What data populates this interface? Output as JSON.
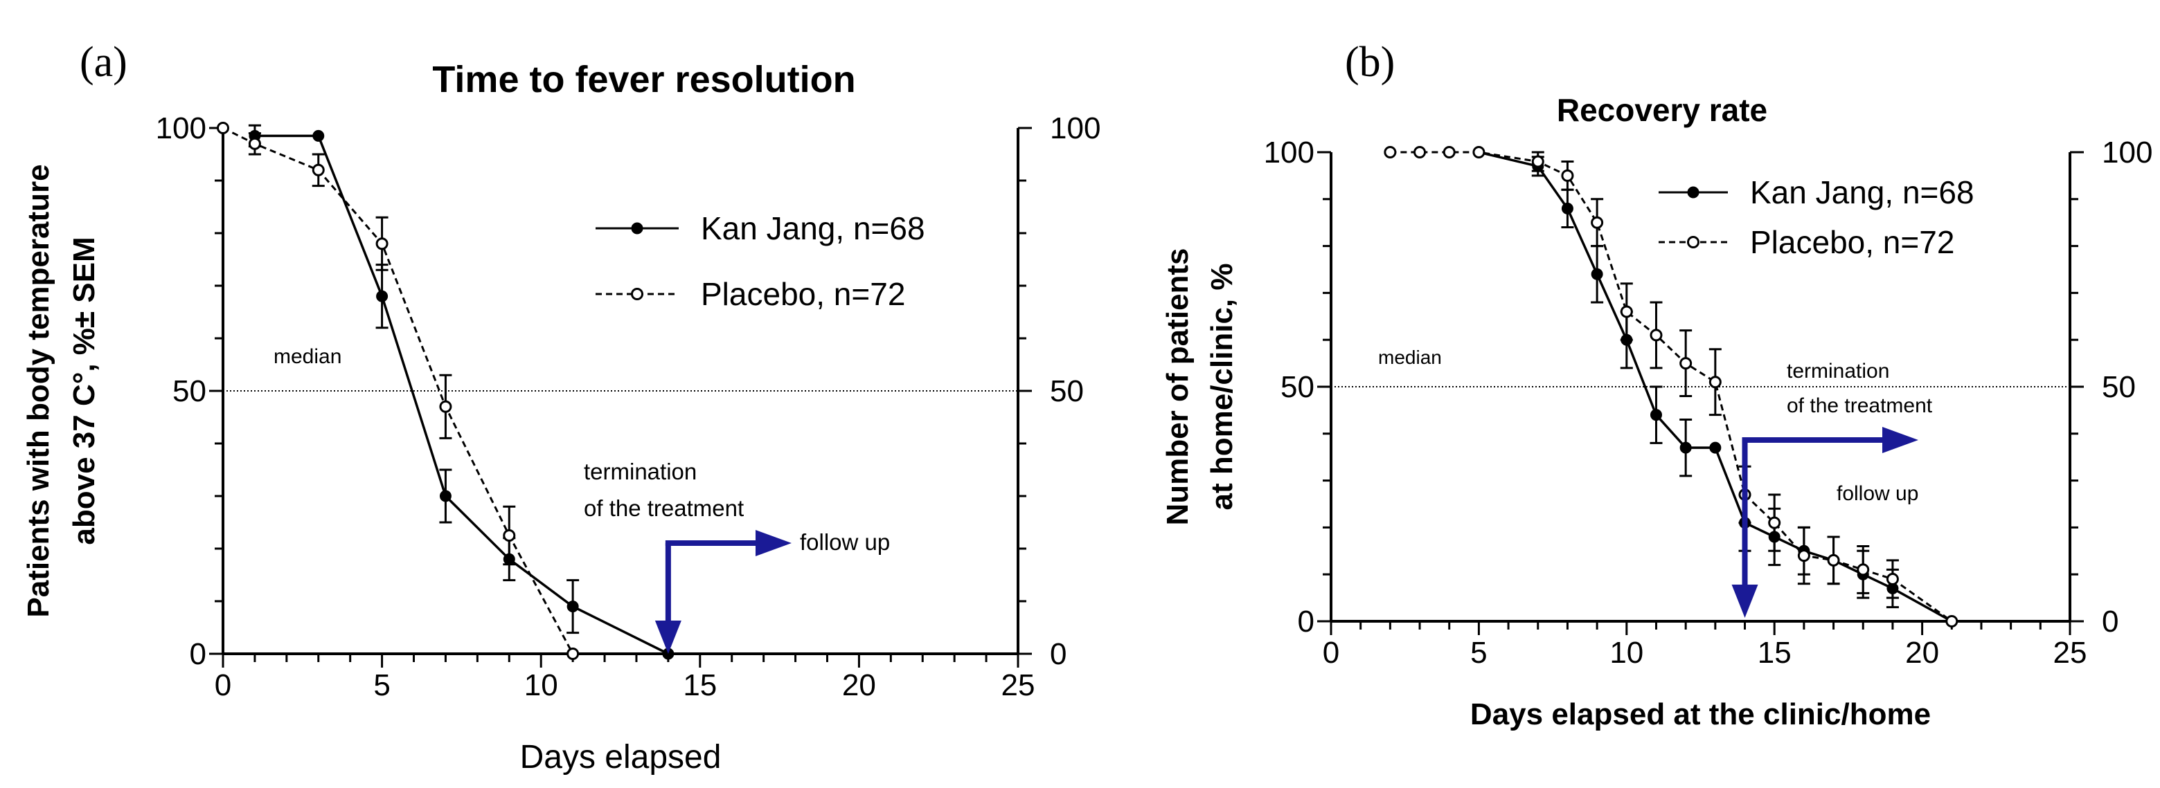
{
  "colors": {
    "axis": "#000000",
    "series": "#000000",
    "arrow": "#1a1a96",
    "background": "#ffffff"
  },
  "chart_data": [
    {
      "type": "line",
      "panel_label": "(a)",
      "title": "Time to fever resolution",
      "xlabel": "Days elapsed",
      "ylabel_lines": [
        "Patients with body temperature",
        "above 37 C°,  %± SEM"
      ],
      "xlim": [
        0,
        25
      ],
      "ylim": [
        0,
        100
      ],
      "x_ticks": [
        0,
        5,
        10,
        15,
        20,
        25
      ],
      "y_ticks": [
        0,
        50,
        100
      ],
      "right_y_ticks": [
        0,
        50,
        100
      ],
      "legend_position": "top-right",
      "series": [
        {
          "name": "Kan Jang, n=68",
          "style": "solid-filled",
          "x": [
            1,
            3,
            5,
            7,
            9,
            11,
            14
          ],
          "y": [
            98.5,
            98.5,
            68,
            30,
            18,
            9,
            0
          ],
          "err": [
            2,
            0,
            6,
            5,
            4,
            5,
            0
          ]
        },
        {
          "name": "Placebo, n=72",
          "style": "dashed-open",
          "x": [
            0,
            1,
            3,
            5,
            7,
            9,
            11
          ],
          "y": [
            100,
            97,
            92,
            78,
            47,
            22.5,
            0
          ],
          "err": [
            0,
            2,
            3,
            5,
            6,
            5.5,
            0
          ]
        }
      ],
      "annotations": {
        "median": "median",
        "termination_line1": "termination",
        "termination_line2": "of the treatment",
        "follow_up": "follow up"
      },
      "median_value": 50,
      "termination_day": 14
    },
    {
      "type": "line",
      "panel_label": "(b)",
      "title": "Recovery rate",
      "xlabel": "Days elapsed at the clinic/home",
      "ylabel_lines": [
        "Number of patients",
        "at home/clinic, %"
      ],
      "xlim": [
        0,
        25
      ],
      "ylim": [
        0,
        100
      ],
      "x_ticks": [
        0,
        5,
        10,
        15,
        20,
        25
      ],
      "y_ticks": [
        0,
        50,
        100
      ],
      "right_y_ticks": [
        0,
        50,
        100
      ],
      "legend_position": "top-right",
      "series": [
        {
          "name": "Kan Jang, n=68",
          "style": "solid-filled",
          "x": [
            5,
            7,
            8,
            9,
            10,
            11,
            12,
            13,
            14,
            15,
            16,
            17,
            18,
            19,
            21
          ],
          "y": [
            100,
            97,
            88,
            74,
            60,
            44,
            37,
            37,
            21,
            18,
            15,
            13,
            10,
            7,
            0
          ],
          "err": [
            0,
            2,
            4,
            6,
            6,
            6,
            6,
            0,
            6,
            6,
            5,
            5,
            5,
            4,
            0
          ]
        },
        {
          "name": "Placebo, n=72",
          "style": "dashed-open",
          "x": [
            2,
            3,
            4,
            5,
            7,
            8,
            9,
            10,
            11,
            12,
            13,
            14,
            15,
            16,
            17,
            18,
            19,
            21
          ],
          "y": [
            100,
            100,
            100,
            100,
            98,
            95,
            85,
            66,
            61,
            55,
            51,
            27,
            21,
            14,
            13,
            11,
            9,
            0
          ],
          "err": [
            0,
            0,
            0,
            0,
            2,
            3,
            5,
            6,
            7,
            7,
            7,
            6,
            6,
            6,
            5,
            5,
            4,
            0
          ]
        }
      ],
      "annotations": {
        "median": "median",
        "termination_line1": "termination",
        "termination_line2": "of the treatment",
        "follow_up": "follow up"
      },
      "median_value": 50,
      "termination_day": 14
    }
  ]
}
